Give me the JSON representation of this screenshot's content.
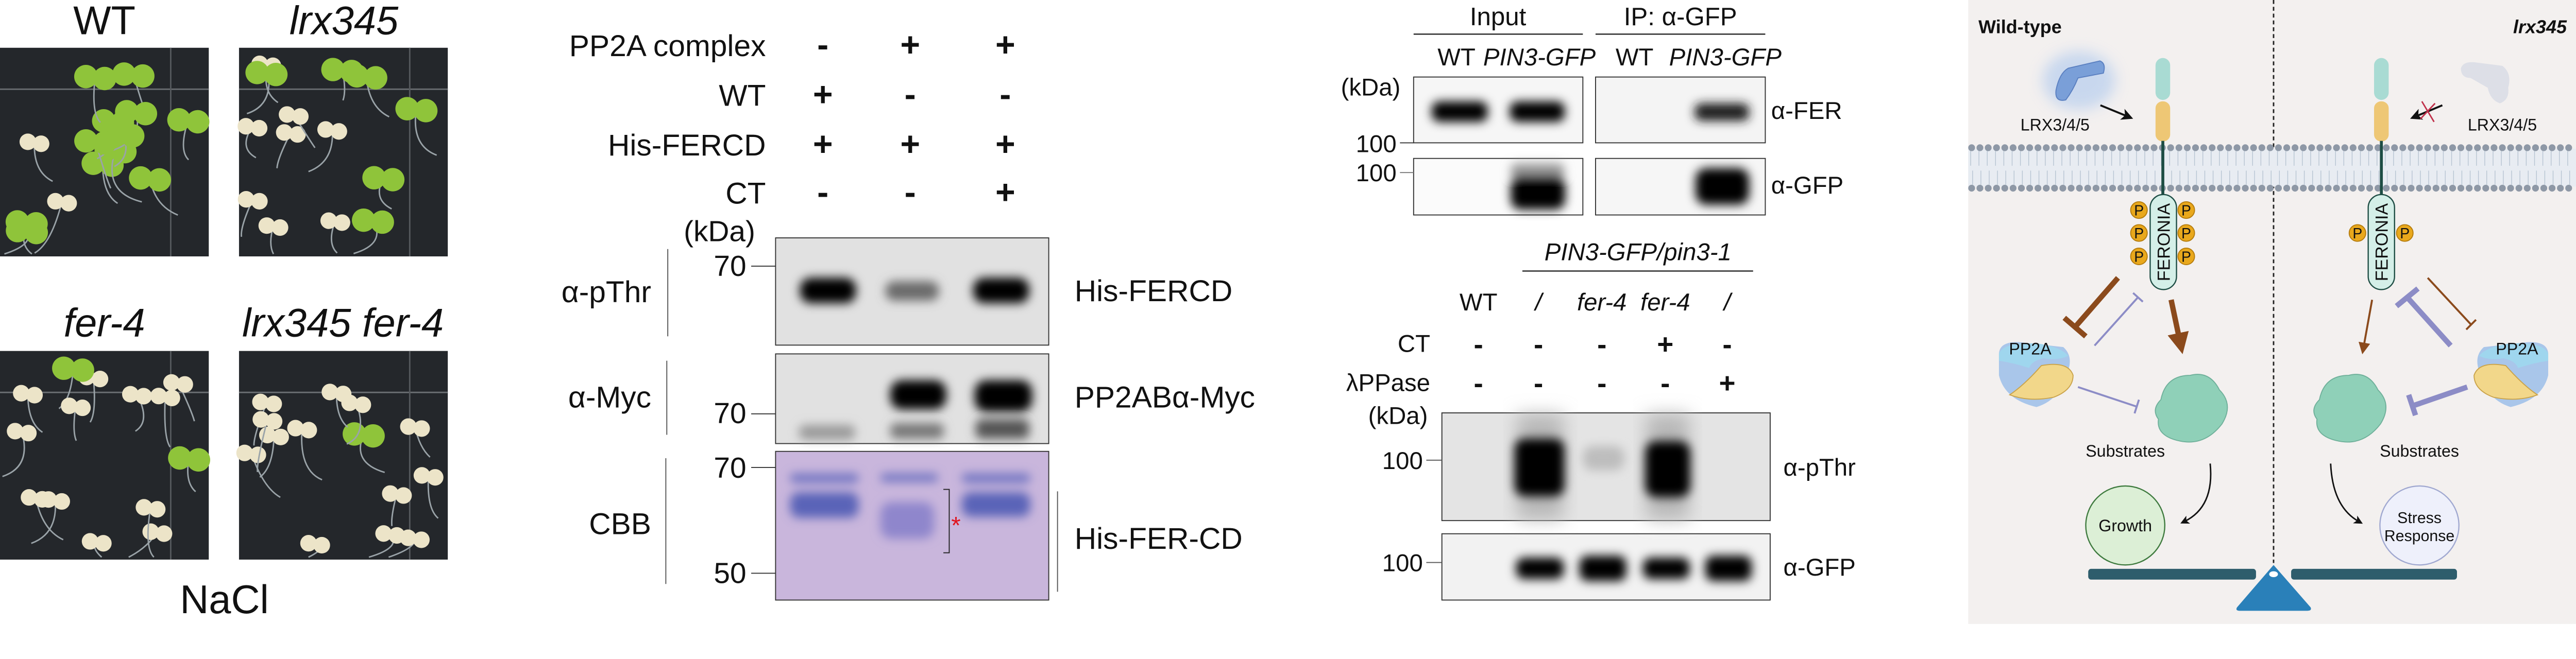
{
  "panel_a": {
    "labels": [
      "WT",
      "lrx345",
      "fer-4",
      "lrx345 fer-4"
    ],
    "condition": "NaCl"
  },
  "panel_b": {
    "rows": [
      {
        "label": "PP2A complex",
        "values": [
          "-",
          "+",
          "+"
        ]
      },
      {
        "label": "WT",
        "values": [
          "+",
          "-",
          "-"
        ]
      },
      {
        "label": "His-FERCD",
        "values": [
          "+",
          "+",
          "+"
        ]
      },
      {
        "label": "CT",
        "values": [
          "-",
          "-",
          "+"
        ]
      }
    ],
    "kda": "(kDa)",
    "blots": [
      {
        "antibody": "α-pThr",
        "protein": "His-FERCD",
        "markers": [
          "70"
        ]
      },
      {
        "antibody": "α-Myc",
        "protein": "PP2ABα-Myc",
        "markers": [
          "70"
        ]
      },
      {
        "antibody": "CBB",
        "protein": "His-FER-CD",
        "markers": [
          "70",
          "50"
        ]
      }
    ],
    "asterisk": "*",
    "colors": {
      "cbb_stain": "#c9b6dc",
      "cbb_band": "#5a63b8",
      "asterisk": "#e0141e"
    }
  },
  "panel_c": {
    "top": {
      "groups": [
        "Input",
        "IP: α-GFP"
      ],
      "lanes": [
        "WT",
        "PIN3-GFP",
        "WT",
        "PIN3-GFP"
      ],
      "kda": "(kDa)",
      "markers": [
        "100",
        "100"
      ],
      "antibodies": [
        "α-FER",
        "α-GFP"
      ]
    },
    "bottom": {
      "group": "PIN3-GFP/pin3-1",
      "lanes": [
        "WT",
        "/",
        "fer-4",
        "fer-4",
        "/"
      ],
      "rows": [
        {
          "label": "CT",
          "values": [
            "-",
            "-",
            "-",
            "+",
            "-"
          ]
        },
        {
          "label": "λPPase",
          "values": [
            "-",
            "-",
            "-",
            "-",
            "+"
          ]
        }
      ],
      "kda": "(kDa)",
      "markers": [
        "100",
        "100"
      ],
      "antibodies": [
        "α-pThr",
        "α-GFP"
      ]
    }
  },
  "panel_d": {
    "left_title": "Wild-type",
    "right_title": "lrx345",
    "ligand": "LRX3/4/5",
    "receptor": "FERONIA",
    "phosphatase": "PP2A",
    "phospho": "P",
    "substrates": "Substrates",
    "growth": "Growth",
    "stress": [
      "Stress",
      "Response"
    ],
    "colors": {
      "background": "#f3f0ef",
      "brown": "#8b4a1c",
      "purple": "#8c8cc6",
      "beam": "#2e5d6c",
      "fulcrum": "#2a80b9",
      "phospho": "#e9a81c"
    }
  }
}
